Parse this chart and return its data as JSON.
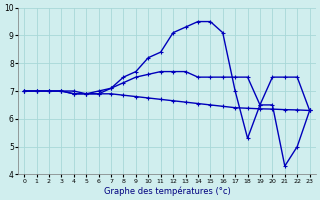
{
  "title": "Graphe des températures (°c)",
  "bg_color": "#d0eeee",
  "grid_color": "#a8d8d8",
  "line_color": "#0000bb",
  "xlim": [
    -0.5,
    23.5
  ],
  "ylim": [
    4,
    10
  ],
  "yticks": [
    4,
    5,
    6,
    7,
    8,
    9,
    10
  ],
  "xticks": [
    0,
    1,
    2,
    3,
    4,
    5,
    6,
    7,
    8,
    9,
    10,
    11,
    12,
    13,
    14,
    15,
    16,
    17,
    18,
    19,
    20,
    21,
    22,
    23
  ],
  "series1_x": [
    0,
    1,
    2,
    3,
    4,
    5,
    6,
    7,
    8,
    9,
    10,
    11,
    12,
    13,
    14,
    15,
    16,
    17,
    18,
    19,
    20,
    21,
    22,
    23
  ],
  "series1_y": [
    7.0,
    7.0,
    7.0,
    7.0,
    6.9,
    6.9,
    6.9,
    6.9,
    6.85,
    6.8,
    6.75,
    6.7,
    6.65,
    6.6,
    6.55,
    6.5,
    6.45,
    6.4,
    6.38,
    6.36,
    6.35,
    6.33,
    6.32,
    6.3
  ],
  "series2_x": [
    0,
    1,
    2,
    3,
    4,
    5,
    6,
    7,
    8,
    9,
    10,
    11,
    12,
    13,
    14,
    15,
    16,
    17,
    18,
    19,
    20,
    21,
    22,
    23
  ],
  "series2_y": [
    7.0,
    7.0,
    7.0,
    7.0,
    7.0,
    6.9,
    6.9,
    7.1,
    7.3,
    7.5,
    7.6,
    7.7,
    7.7,
    7.7,
    7.5,
    7.5,
    7.5,
    7.5,
    7.5,
    6.5,
    7.5,
    7.5,
    7.5,
    6.3
  ],
  "series3_x": [
    0,
    1,
    2,
    3,
    4,
    5,
    6,
    7,
    8,
    9,
    10,
    11,
    12,
    13,
    14,
    15,
    16,
    17,
    18,
    19,
    20,
    21,
    22,
    23
  ],
  "series3_y": [
    7.0,
    7.0,
    7.0,
    7.0,
    6.9,
    6.9,
    7.0,
    7.1,
    7.5,
    7.7,
    8.2,
    8.4,
    9.1,
    9.3,
    9.5,
    9.5,
    9.1,
    7.0,
    5.3,
    6.5,
    6.5,
    4.3,
    5.0,
    6.3
  ]
}
